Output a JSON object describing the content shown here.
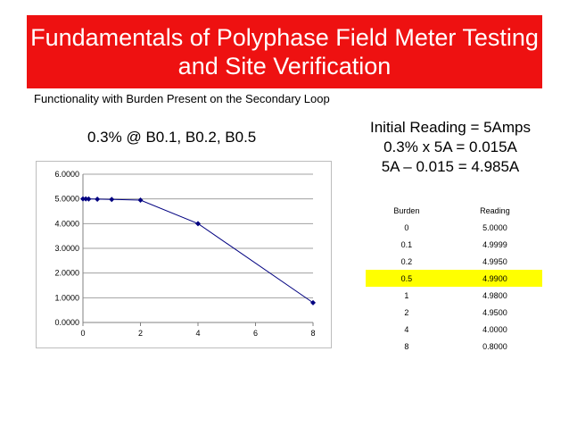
{
  "slide": {
    "title_line1": "Fundamentals of Polyphase Field Meter Testing",
    "title_line2": "and Site Verification",
    "subtitle": "Functionality with Burden Present on the Secondary Loop",
    "chart_caption": "0.3% @ B0.1, B0.2, B0.5",
    "info_lines": [
      "Initial Reading = 5Amps",
      "0.3% x 5A = 0.015A",
      "5A – 0.015 = 4.985A"
    ],
    "accent_color": "#ee1111",
    "highlight_color": "#ffff00"
  },
  "table": {
    "headers": [
      "Burden",
      "Reading"
    ],
    "rows": [
      [
        "0",
        "5.0000"
      ],
      [
        "0.1",
        "4.9999"
      ],
      [
        "0.2",
        "4.9950"
      ],
      [
        "0.5",
        "4.9900"
      ],
      [
        "1",
        "4.9800"
      ],
      [
        "2",
        "4.9500"
      ],
      [
        "4",
        "4.0000"
      ],
      [
        "8",
        "0.8000"
      ]
    ],
    "highlighted_row_index": 3
  },
  "chart_data": {
    "type": "line",
    "x": [
      0,
      0.1,
      0.2,
      0.5,
      1,
      2,
      4,
      8
    ],
    "y": [
      5.0,
      4.9999,
      4.995,
      4.99,
      4.98,
      4.95,
      4.0,
      0.8
    ],
    "xlim": [
      0,
      8
    ],
    "ylim": [
      0,
      6
    ],
    "x_ticks": [
      "0",
      "2",
      "4",
      "6",
      "8"
    ],
    "y_ticks": [
      "0.0000",
      "1.0000",
      "2.0000",
      "3.0000",
      "4.0000",
      "5.0000",
      "6.0000"
    ],
    "grid": true,
    "legend": "none",
    "series_color": "#000080",
    "grid_color": "#a0a0a0"
  }
}
